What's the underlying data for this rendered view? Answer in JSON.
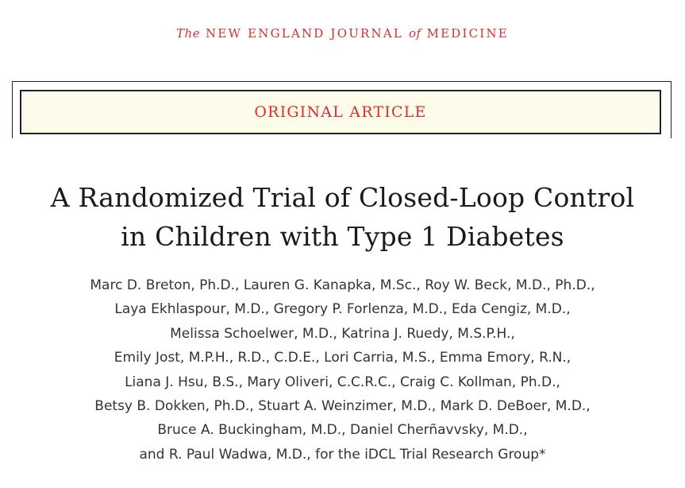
{
  "journal": {
    "prefix": "The",
    "name_part1": "NEW ENGLAND JOURNAL",
    "connector": "of",
    "name_part2": "MEDICINE"
  },
  "article_type": "ORIGINAL ARTICLE",
  "title_lines": [
    "A Randomized Trial of Closed-Loop Control",
    "in Children with Type 1 Diabetes"
  ],
  "author_lines": [
    "Marc D. Breton, Ph.D., Lauren G. Kanapka, M.Sc., Roy W. Beck, M.D., Ph.D.,",
    "Laya Ekhlaspour, M.D., Gregory P. Forlenza, M.D., Eda Cengiz, M.D.,",
    "Melissa Schoelwer, M.D., Katrina J. Ruedy, M.S.P.H.,",
    "Emily Jost, M.P.H., R.D., C.D.E., Lori Carria, M.S., Emma Emory, R.N.,",
    "Liana J. Hsu, B.S., Mary Oliveri, C.C.R.C., Craig C. Kollman, Ph.D.,",
    "Betsy B. Dokken, Ph.D., Stuart A. Weinzimer, M.D., Mark D. DeBoer, M.D.,",
    "Bruce A. Buckingham, M.D., Daniel Cherñavvsky, M.D.,",
    "and R. Paul Wadwa, M.D., for the iDCL Trial Research Group*"
  ],
  "colors": {
    "accent_red": "#d62f2f",
    "box_fill": "#fdfbea",
    "text": "#1a1a1a"
  }
}
